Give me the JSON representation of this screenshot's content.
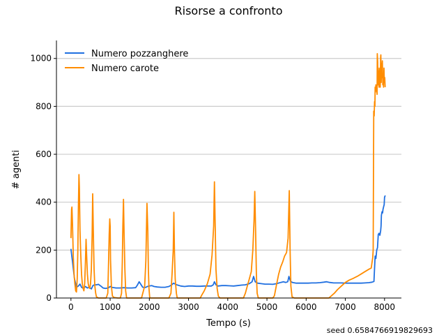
{
  "chart_data": {
    "type": "line",
    "title": "Risorse a confronto",
    "xlabel": "Tempo (s)",
    "ylabel": "# agenti",
    "xlim": [
      -370,
      8430
    ],
    "ylim": [
      0,
      1075
    ],
    "xticks": [
      0,
      1000,
      2000,
      3000,
      4000,
      5000,
      6000,
      7000,
      8000
    ],
    "yticks": [
      0,
      200,
      400,
      600,
      800,
      1000
    ],
    "grid": "horizontal",
    "legend": "top-left",
    "footnote": "seed 0.6584766919829693",
    "series": [
      {
        "name": "Numero pozzanghere",
        "color": "#1f6fe0",
        "points": [
          [
            0,
            205
          ],
          [
            40,
            150
          ],
          [
            90,
            80
          ],
          [
            140,
            45
          ],
          [
            190,
            50
          ],
          [
            230,
            58
          ],
          [
            270,
            45
          ],
          [
            320,
            40
          ],
          [
            370,
            48
          ],
          [
            420,
            42
          ],
          [
            470,
            45
          ],
          [
            520,
            38
          ],
          [
            560,
            52
          ],
          [
            600,
            55
          ],
          [
            650,
            55
          ],
          [
            700,
            57
          ],
          [
            760,
            50
          ],
          [
            820,
            42
          ],
          [
            880,
            40
          ],
          [
            950,
            42
          ],
          [
            1000,
            48
          ],
          [
            1060,
            44
          ],
          [
            1150,
            42
          ],
          [
            1250,
            42
          ],
          [
            1350,
            43
          ],
          [
            1450,
            42
          ],
          [
            1550,
            42
          ],
          [
            1650,
            43
          ],
          [
            1700,
            55
          ],
          [
            1740,
            68
          ],
          [
            1780,
            58
          ],
          [
            1830,
            45
          ],
          [
            1900,
            44
          ],
          [
            1950,
            48
          ],
          [
            2000,
            50
          ],
          [
            2060,
            52
          ],
          [
            2120,
            48
          ],
          [
            2200,
            46
          ],
          [
            2300,
            45
          ],
          [
            2400,
            45
          ],
          [
            2500,
            48
          ],
          [
            2570,
            55
          ],
          [
            2620,
            62
          ],
          [
            2660,
            58
          ],
          [
            2700,
            55
          ],
          [
            2800,
            50
          ],
          [
            2900,
            48
          ],
          [
            3000,
            50
          ],
          [
            3100,
            50
          ],
          [
            3200,
            49
          ],
          [
            3300,
            49
          ],
          [
            3400,
            50
          ],
          [
            3500,
            50
          ],
          [
            3580,
            50
          ],
          [
            3630,
            55
          ],
          [
            3660,
            68
          ],
          [
            3700,
            55
          ],
          [
            3750,
            50
          ],
          [
            3850,
            52
          ],
          [
            3950,
            52
          ],
          [
            4050,
            51
          ],
          [
            4150,
            50
          ],
          [
            4250,
            52
          ],
          [
            4350,
            54
          ],
          [
            4450,
            55
          ],
          [
            4550,
            60
          ],
          [
            4620,
            68
          ],
          [
            4660,
            90
          ],
          [
            4700,
            68
          ],
          [
            4760,
            62
          ],
          [
            4850,
            60
          ],
          [
            4950,
            58
          ],
          [
            5050,
            58
          ],
          [
            5150,
            57
          ],
          [
            5250,
            60
          ],
          [
            5350,
            65
          ],
          [
            5420,
            68
          ],
          [
            5480,
            65
          ],
          [
            5530,
            68
          ],
          [
            5560,
            90
          ],
          [
            5600,
            70
          ],
          [
            5650,
            65
          ],
          [
            5750,
            62
          ],
          [
            5850,
            62
          ],
          [
            5950,
            62
          ],
          [
            6050,
            62
          ],
          [
            6150,
            63
          ],
          [
            6250,
            63
          ],
          [
            6350,
            64
          ],
          [
            6450,
            66
          ],
          [
            6520,
            68
          ],
          [
            6600,
            65
          ],
          [
            6700,
            63
          ],
          [
            6800,
            63
          ],
          [
            6900,
            63
          ],
          [
            7000,
            62
          ],
          [
            7100,
            62
          ],
          [
            7200,
            62
          ],
          [
            7300,
            62
          ],
          [
            7400,
            62
          ],
          [
            7500,
            63
          ],
          [
            7600,
            64
          ],
          [
            7680,
            66
          ],
          [
            7730,
            69
          ],
          [
            7760,
            175
          ],
          [
            7780,
            165
          ],
          [
            7800,
            200
          ],
          [
            7820,
            210
          ],
          [
            7840,
            265
          ],
          [
            7860,
            270
          ],
          [
            7880,
            262
          ],
          [
            7900,
            280
          ],
          [
            7910,
            300
          ],
          [
            7920,
            345
          ],
          [
            7935,
            360
          ],
          [
            7950,
            355
          ],
          [
            7960,
            370
          ],
          [
            7975,
            380
          ],
          [
            7990,
            390
          ],
          [
            8000,
            420
          ],
          [
            8010,
            425
          ],
          [
            8020,
            428
          ]
        ]
      },
      {
        "name": "Numero carote",
        "color": "#ff8c00",
        "points": [
          [
            0,
            250
          ],
          [
            15,
            370
          ],
          [
            25,
            380
          ],
          [
            40,
            300
          ],
          [
            60,
            170
          ],
          [
            80,
            100
          ],
          [
            100,
            60
          ],
          [
            120,
            30
          ],
          [
            140,
            25
          ],
          [
            160,
            80
          ],
          [
            175,
            200
          ],
          [
            190,
            380
          ],
          [
            205,
            515
          ],
          [
            215,
            460
          ],
          [
            230,
            280
          ],
          [
            250,
            180
          ],
          [
            270,
            100
          ],
          [
            290,
            60
          ],
          [
            310,
            40
          ],
          [
            330,
            30
          ],
          [
            350,
            60
          ],
          [
            370,
            150
          ],
          [
            385,
            245
          ],
          [
            400,
            180
          ],
          [
            420,
            100
          ],
          [
            440,
            60
          ],
          [
            460,
            45
          ],
          [
            480,
            40
          ],
          [
            500,
            60
          ],
          [
            520,
            120
          ],
          [
            540,
            260
          ],
          [
            555,
            435
          ],
          [
            570,
            280
          ],
          [
            590,
            120
          ],
          [
            610,
            50
          ],
          [
            630,
            20
          ],
          [
            650,
            5
          ],
          [
            700,
            0
          ],
          [
            800,
            0
          ],
          [
            900,
            0
          ],
          [
            940,
            20
          ],
          [
            960,
            150
          ],
          [
            975,
            265
          ],
          [
            990,
            330
          ],
          [
            1000,
            300
          ],
          [
            1010,
            160
          ],
          [
            1030,
            50
          ],
          [
            1060,
            8
          ],
          [
            1100,
            2
          ],
          [
            1200,
            0
          ],
          [
            1260,
            0
          ],
          [
            1290,
            20
          ],
          [
            1310,
            150
          ],
          [
            1325,
            300
          ],
          [
            1340,
            412
          ],
          [
            1355,
            280
          ],
          [
            1375,
            120
          ],
          [
            1395,
            30
          ],
          [
            1420,
            0
          ],
          [
            1500,
            0
          ],
          [
            1600,
            0
          ],
          [
            1700,
            0
          ],
          [
            1800,
            0
          ],
          [
            1880,
            50
          ],
          [
            1910,
            155
          ],
          [
            1940,
            395
          ],
          [
            1960,
            280
          ],
          [
            1975,
            120
          ],
          [
            1990,
            40
          ],
          [
            2010,
            0
          ],
          [
            2100,
            0
          ],
          [
            2200,
            0
          ],
          [
            2300,
            0
          ],
          [
            2400,
            0
          ],
          [
            2500,
            0
          ],
          [
            2550,
            20
          ],
          [
            2580,
            100
          ],
          [
            2610,
            200
          ],
          [
            2625,
            358
          ],
          [
            2640,
            200
          ],
          [
            2660,
            80
          ],
          [
            2690,
            20
          ],
          [
            2710,
            0
          ],
          [
            2800,
            0
          ],
          [
            2900,
            0
          ],
          [
            3000,
            0
          ],
          [
            3100,
            0
          ],
          [
            3200,
            0
          ],
          [
            3300,
            0
          ],
          [
            3330,
            10
          ],
          [
            3400,
            30
          ],
          [
            3480,
            60
          ],
          [
            3550,
            100
          ],
          [
            3600,
            180
          ],
          [
            3640,
            300
          ],
          [
            3660,
            485
          ],
          [
            3680,
            300
          ],
          [
            3700,
            120
          ],
          [
            3730,
            40
          ],
          [
            3760,
            8
          ],
          [
            3800,
            0
          ],
          [
            3900,
            0
          ],
          [
            4000,
            0
          ],
          [
            4100,
            0
          ],
          [
            4200,
            0
          ],
          [
            4300,
            0
          ],
          [
            4400,
            0
          ],
          [
            4450,
            20
          ],
          [
            4500,
            50
          ],
          [
            4550,
            80
          ],
          [
            4600,
            110
          ],
          [
            4640,
            200
          ],
          [
            4670,
            320
          ],
          [
            4690,
            445
          ],
          [
            4710,
            280
          ],
          [
            4730,
            100
          ],
          [
            4750,
            20
          ],
          [
            4780,
            0
          ],
          [
            4900,
            0
          ],
          [
            5000,
            0
          ],
          [
            5100,
            0
          ],
          [
            5150,
            0
          ],
          [
            5190,
            10
          ],
          [
            5250,
            60
          ],
          [
            5300,
            100
          ],
          [
            5350,
            130
          ],
          [
            5400,
            150
          ],
          [
            5450,
            175
          ],
          [
            5500,
            190
          ],
          [
            5540,
            250
          ],
          [
            5570,
            448
          ],
          [
            5590,
            200
          ],
          [
            5610,
            50
          ],
          [
            5640,
            5
          ],
          [
            5700,
            0
          ],
          [
            5800,
            0
          ],
          [
            5900,
            0
          ],
          [
            6000,
            0
          ],
          [
            6100,
            0
          ],
          [
            6200,
            0
          ],
          [
            6300,
            0
          ],
          [
            6400,
            0
          ],
          [
            6500,
            0
          ],
          [
            6580,
            0
          ],
          [
            6650,
            10
          ],
          [
            6720,
            20
          ],
          [
            6800,
            35
          ],
          [
            6900,
            50
          ],
          [
            7000,
            65
          ],
          [
            7100,
            75
          ],
          [
            7200,
            82
          ],
          [
            7300,
            90
          ],
          [
            7400,
            100
          ],
          [
            7500,
            110
          ],
          [
            7600,
            120
          ],
          [
            7660,
            125
          ],
          [
            7700,
            170
          ],
          [
            7710,
            200
          ],
          [
            7718,
            560
          ],
          [
            7725,
            780
          ],
          [
            7735,
            760
          ],
          [
            7745,
            820
          ],
          [
            7755,
            800
          ],
          [
            7760,
            880
          ],
          [
            7770,
            860
          ],
          [
            7780,
            890
          ],
          [
            7790,
            870
          ],
          [
            7800,
            880
          ],
          [
            7810,
            850
          ],
          [
            7815,
            1020
          ],
          [
            7825,
            985
          ],
          [
            7830,
            890
          ],
          [
            7840,
            960
          ],
          [
            7850,
            900
          ],
          [
            7860,
            880
          ],
          [
            7870,
            940
          ],
          [
            7880,
            960
          ],
          [
            7890,
            880
          ],
          [
            7900,
            1005
          ],
          [
            7905,
            1015
          ],
          [
            7915,
            900
          ],
          [
            7925,
            980
          ],
          [
            7935,
            920
          ],
          [
            7945,
            990
          ],
          [
            7955,
            890
          ],
          [
            7965,
            920
          ],
          [
            7975,
            880
          ],
          [
            7985,
            960
          ],
          [
            7995,
            900
          ],
          [
            8005,
            920
          ],
          [
            8015,
            880
          ]
        ]
      }
    ]
  }
}
